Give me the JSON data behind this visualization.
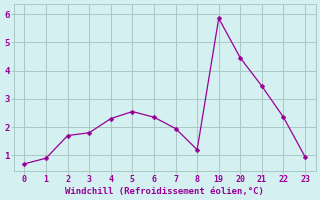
{
  "x_indices": [
    0,
    1,
    2,
    3,
    4,
    5,
    6,
    7,
    8,
    9,
    10,
    11,
    12,
    13
  ],
  "y": [
    0.7,
    0.9,
    1.7,
    1.8,
    2.3,
    2.55,
    2.35,
    1.95,
    1.2,
    5.85,
    4.45,
    3.45,
    2.35,
    0.95
  ],
  "xtick_positions": [
    0,
    1,
    2,
    3,
    4,
    5,
    6,
    7,
    8,
    9,
    10,
    11,
    12,
    13
  ],
  "xtick_labels": [
    "0",
    "1",
    "2",
    "3",
    "4",
    "5",
    "6",
    "7",
    "8",
    "19",
    "20",
    "21",
    "22",
    "23"
  ],
  "yticks": [
    1,
    2,
    3,
    4,
    5,
    6
  ],
  "line_color": "#990099",
  "marker_color": "#990099",
  "bg_color": "#d4f0f0",
  "grid_color": "#a8c8c8",
  "tick_label_color": "#990099",
  "xlabel": "Windchill (Refroidissement éolien,°C)",
  "xlabel_color": "#990099",
  "ylim": [
    0.45,
    6.35
  ],
  "xlim": [
    -0.5,
    13.5
  ],
  "marker_size": 2.5,
  "line_width": 0.9,
  "xlabel_fontsize": 6.5,
  "tick_fontsize": 6
}
